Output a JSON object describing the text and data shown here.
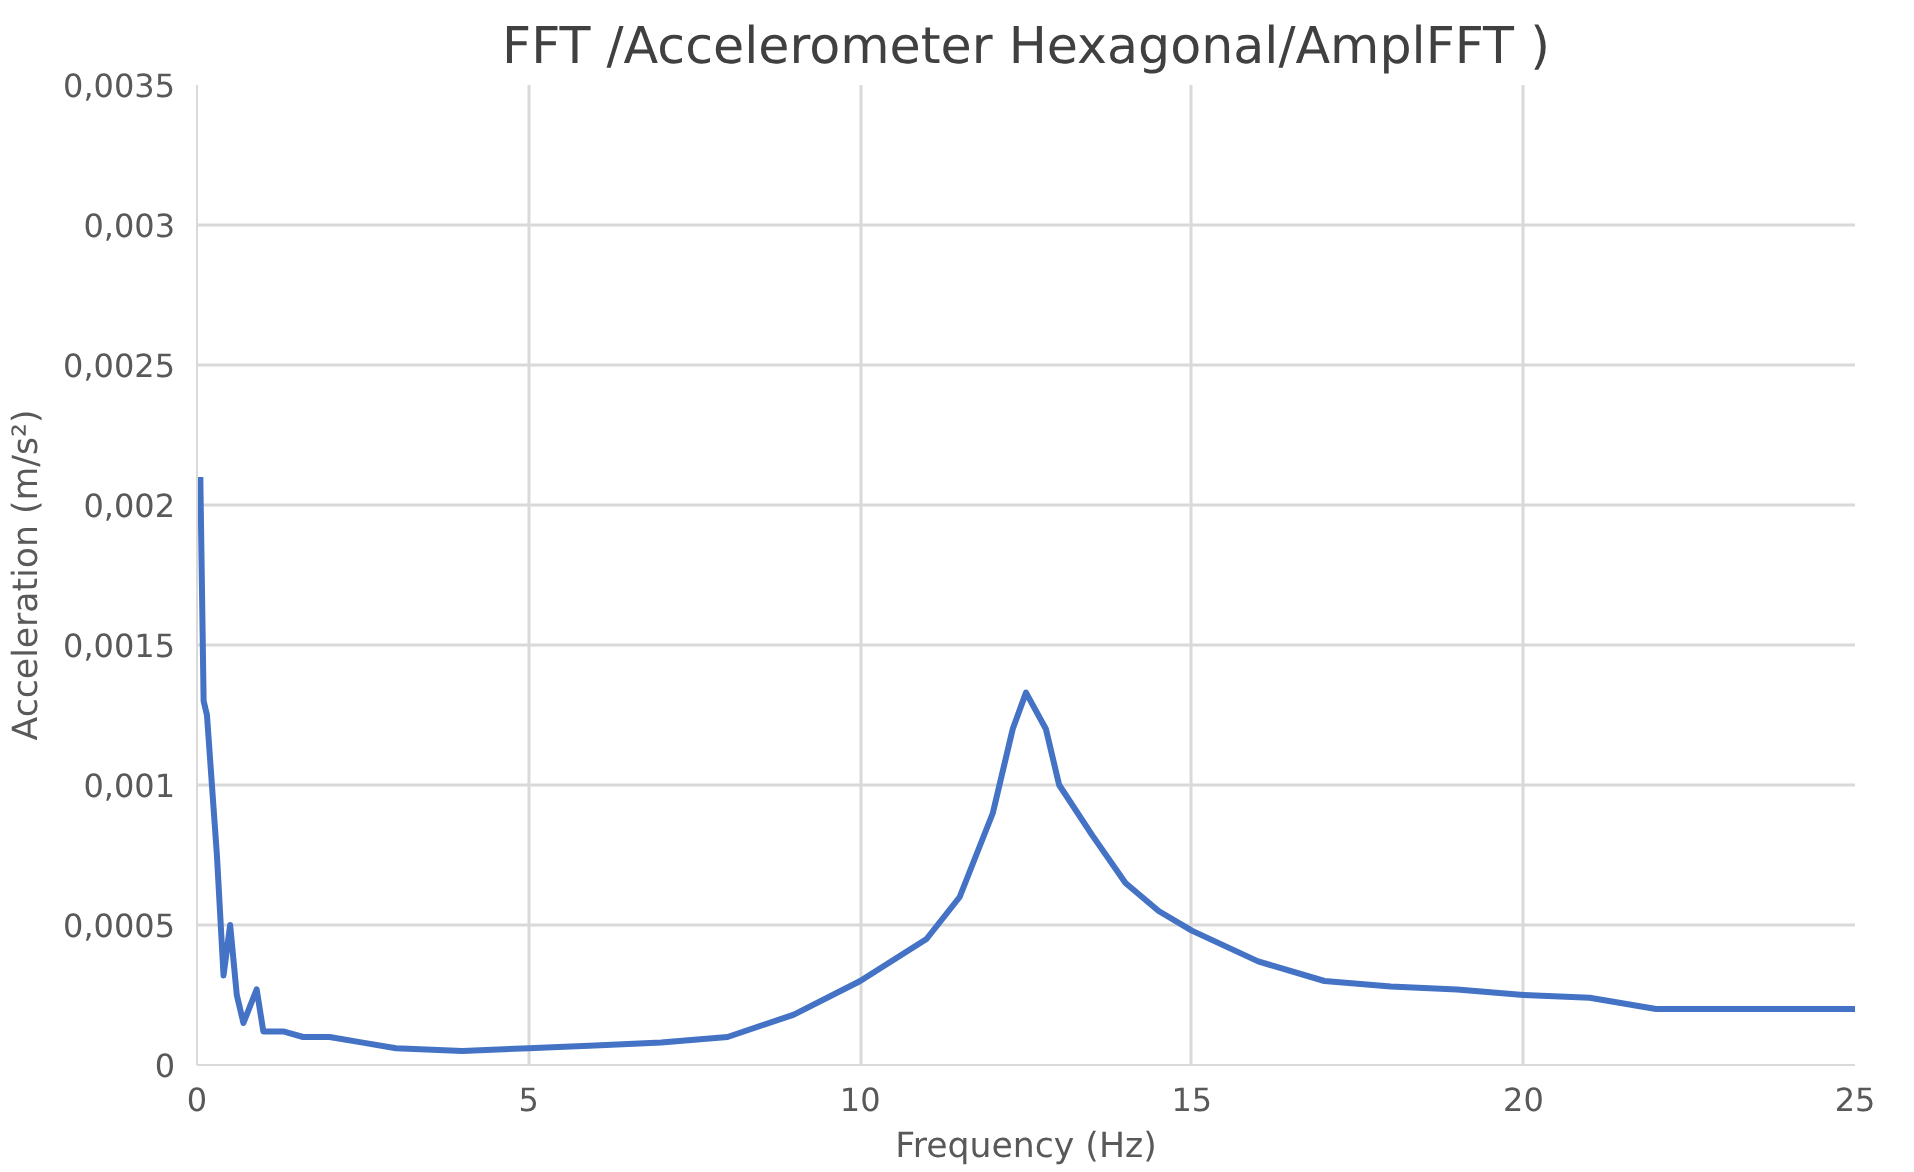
{
  "chart_data": {
    "type": "line",
    "title": "FFT /Accelerometer Hexagonal/AmplFFT )",
    "xlabel": "Frequency (Hz)",
    "ylabel": "Acceleration (m/s²)",
    "x": [
      0.05,
      0.1,
      0.15,
      0.3,
      0.4,
      0.5,
      0.6,
      0.7,
      0.9,
      1.0,
      1.3,
      1.6,
      2,
      2.5,
      3,
      4,
      5,
      6,
      7,
      8,
      9,
      10,
      11,
      11.5,
      12,
      12.3,
      12.5,
      12.8,
      13,
      13.5,
      14,
      14.5,
      15,
      16,
      17,
      18,
      19,
      20,
      21,
      22,
      23,
      24,
      25
    ],
    "series": [
      {
        "color": "#4472c4",
        "values": [
          0.0021,
          0.0013,
          0.00125,
          0.00075,
          0.00032,
          0.0005,
          0.00025,
          0.00015,
          0.00027,
          0.00012,
          0.00012,
          0.0001,
          0.0001,
          8e-05,
          6e-05,
          5e-05,
          6e-05,
          7e-05,
          8e-05,
          0.0001,
          0.00018,
          0.0003,
          0.00045,
          0.0006,
          0.0009,
          0.0012,
          0.00133,
          0.0012,
          0.001,
          0.00082,
          0.00065,
          0.00055,
          0.00048,
          0.00037,
          0.0003,
          0.00028,
          0.00027,
          0.00025,
          0.00024,
          0.0002,
          0.0002,
          0.0002,
          0.0002
        ]
      }
    ],
    "xlim": [
      0,
      25
    ],
    "xticks": [
      0,
      5,
      10,
      15,
      20,
      25
    ],
    "ylim": [
      0,
      0.0035
    ],
    "yticks": [
      0,
      {
        "value": 0.0005,
        "label": "0,0005"
      },
      {
        "value": 0.001,
        "label": "0,001"
      },
      {
        "value": 0.0015,
        "label": "0,0015"
      },
      {
        "value": 0.002,
        "label": "0,002"
      },
      {
        "value": 0.0025,
        "label": "0,0025"
      },
      {
        "value": 0.003,
        "label": "0,003"
      },
      {
        "value": 0.0035,
        "label": "0,0035"
      }
    ],
    "grid": true,
    "marker": "none",
    "line_style": "solid"
  }
}
